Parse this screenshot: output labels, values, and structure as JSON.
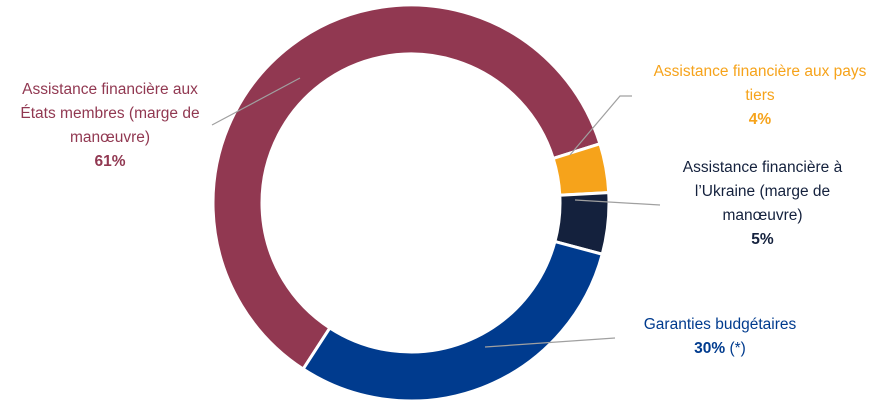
{
  "chart_data": {
    "type": "donut",
    "categories": [
      "Assistance financière aux États membres (marge de manœuvre)",
      "Assistance financière aux pays tiers",
      "Assistance financière à l’Ukraine (marge de manœuvre)",
      "Garanties budgétaires"
    ],
    "values": [
      61,
      4,
      5,
      30
    ],
    "value_labels": [
      "61%",
      "4%",
      "5%",
      "30%"
    ],
    "colors": [
      "#913851",
      "#f6a31b",
      "#14213d",
      "#003b8e"
    ],
    "label_colors": [
      "#913851",
      "#f6a31b",
      "#14213d",
      "#003b8e"
    ],
    "note": "(*)"
  }
}
